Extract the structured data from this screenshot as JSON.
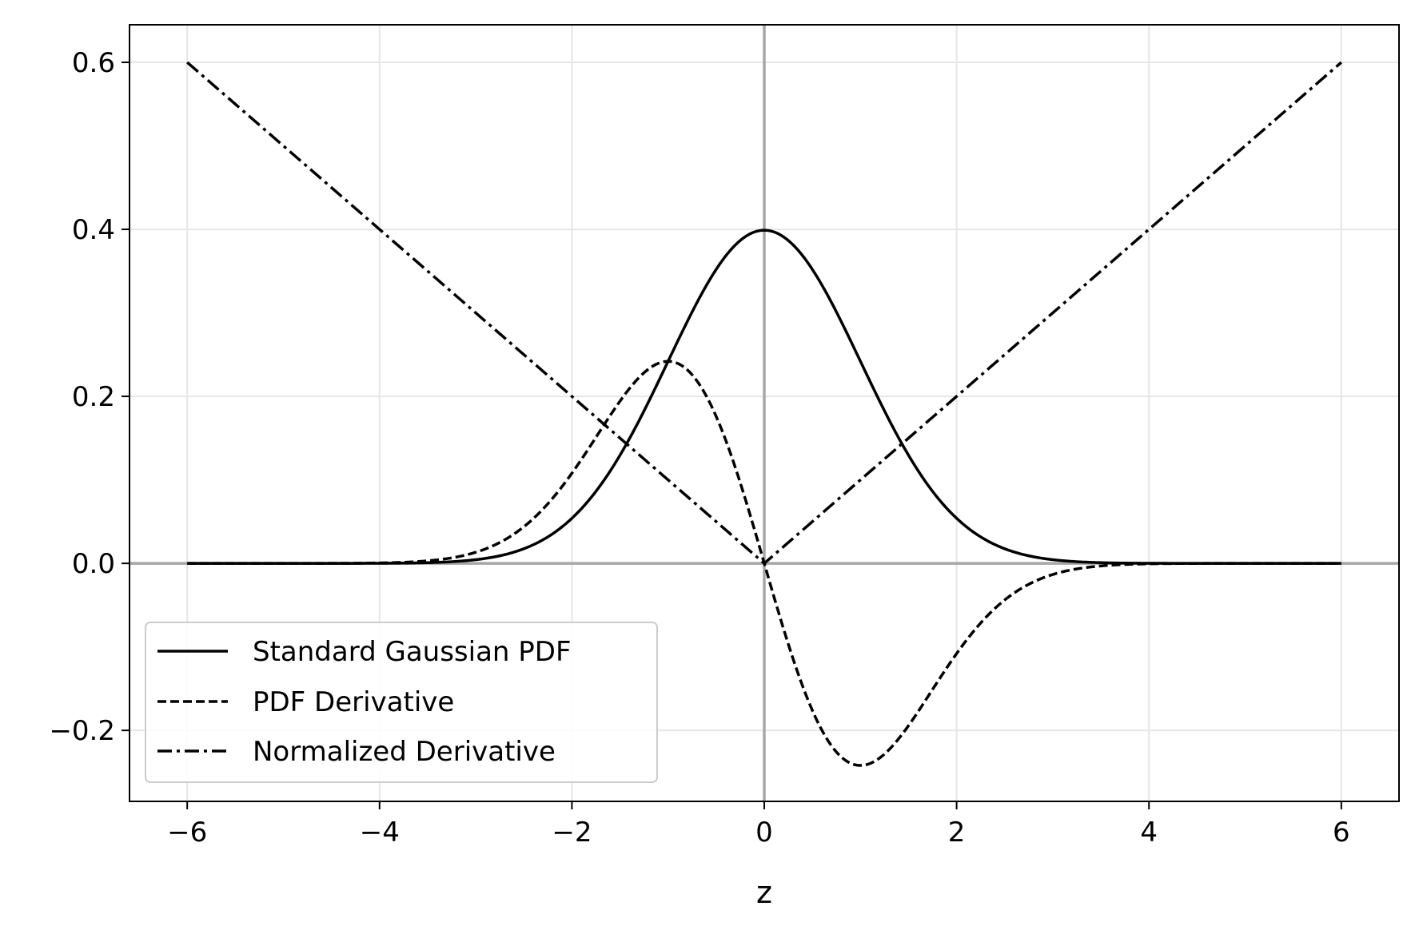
{
  "chart_data": {
    "type": "line",
    "xlabel": "z",
    "ylabel": "",
    "xlim": [
      -6.6,
      6.6
    ],
    "ylim": [
      -0.285,
      0.645
    ],
    "grid": true,
    "legend_position": "lower-left",
    "x_ticks": [
      -6,
      -4,
      -2,
      0,
      2,
      4,
      6
    ],
    "x_tick_labels": [
      "−6",
      "−4",
      "−2",
      "0",
      "2",
      "4",
      "6"
    ],
    "y_ticks": [
      -0.2,
      0.0,
      0.2,
      0.4,
      0.6
    ],
    "y_tick_labels": [
      "−0.2",
      "0.0",
      "0.2",
      "0.4",
      "0.6"
    ],
    "reference_lines": {
      "x": 0,
      "y": 0,
      "color": "#a6a6a6"
    },
    "x": [
      -6,
      -5.5,
      -5,
      -4.5,
      -4,
      -3.5,
      -3,
      -2.75,
      -2.5,
      -2.25,
      -2,
      -1.75,
      -1.5,
      -1.25,
      -1,
      -0.75,
      -0.5,
      -0.25,
      0,
      0.25,
      0.5,
      0.75,
      1,
      1.25,
      1.5,
      1.75,
      2,
      2.25,
      2.5,
      2.75,
      3,
      3.5,
      4,
      4.5,
      5,
      5.5,
      6
    ],
    "series": [
      {
        "name": "Standard Gaussian PDF",
        "linestyle": "solid",
        "color": "#000000",
        "y": [
          0.0,
          0.0,
          0.0,
          0.0,
          0.0001,
          0.0009,
          0.0044,
          0.0091,
          0.0175,
          0.0317,
          0.054,
          0.0863,
          0.1295,
          0.1826,
          0.242,
          0.3011,
          0.3521,
          0.3867,
          0.3989,
          0.3867,
          0.3521,
          0.3011,
          0.242,
          0.1826,
          0.1295,
          0.0863,
          0.054,
          0.0317,
          0.0175,
          0.0091,
          0.0044,
          0.0009,
          0.0001,
          0.0,
          0.0,
          0.0,
          0.0
        ]
      },
      {
        "name": "PDF Derivative",
        "linestyle": "dashed",
        "color": "#000000",
        "y": [
          0.0,
          0.0,
          0.0,
          0.0001,
          0.0005,
          0.0031,
          0.0133,
          0.0251,
          0.0438,
          0.0713,
          0.108,
          0.1511,
          0.1943,
          0.2283,
          0.242,
          0.2258,
          0.176,
          0.0967,
          0.0,
          -0.0967,
          -0.176,
          -0.2258,
          -0.242,
          -0.2283,
          -0.1943,
          -0.1511,
          -0.108,
          -0.0713,
          -0.0438,
          -0.0251,
          -0.0133,
          -0.0031,
          -0.0005,
          -0.0001,
          0.0,
          0.0,
          0.0
        ]
      },
      {
        "name": "Normalized Derivative",
        "linestyle": "dash-dot",
        "color": "#000000",
        "y": [
          0.6,
          0.55,
          0.5,
          0.45,
          0.4,
          0.35,
          0.3,
          0.275,
          0.25,
          0.225,
          0.2,
          0.175,
          0.15,
          0.125,
          0.1,
          0.075,
          0.05,
          0.025,
          0.0,
          0.025,
          0.05,
          0.075,
          0.1,
          0.125,
          0.15,
          0.175,
          0.2,
          0.225,
          0.25,
          0.275,
          0.3,
          0.35,
          0.4,
          0.45,
          0.5,
          0.55,
          0.6
        ]
      }
    ]
  }
}
